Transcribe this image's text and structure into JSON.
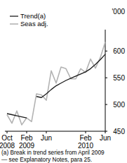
{
  "chart_data": {
    "type": "line",
    "y_unit_label": "'000",
    "categories": [
      "Oct 2008",
      null,
      null,
      null,
      "Feb 2009",
      null,
      null,
      null,
      "Jun",
      null,
      null,
      null,
      null,
      null,
      null,
      null,
      "Feb 2010",
      null,
      null,
      null,
      "Jun"
    ],
    "series": [
      {
        "name": "Trend(a)",
        "color": "#1c1c1c",
        "values": [
          483,
          481,
          479,
          477,
          475,
          null,
          515,
          513,
          520,
          528,
          535,
          540,
          545,
          549,
          553,
          557,
          561,
          567,
          575,
          584,
          594
        ]
      },
      {
        "name": "Seas adj.",
        "color": "#b3b3b3",
        "values": [
          481,
          465,
          488,
          462,
          475,
          468,
          520,
          518,
          508,
          563,
          540,
          570,
          567,
          548,
          548,
          567,
          560,
          585,
          568,
          588,
          617
        ]
      }
    ],
    "ylim": [
      450,
      640
    ],
    "yticks": [
      450,
      500,
      550,
      600
    ],
    "grid": false,
    "legend": "top-left",
    "footnote": [
      "(a) Break in trend series from April 2009",
      "— see Explanatory Notes, para 25."
    ]
  }
}
